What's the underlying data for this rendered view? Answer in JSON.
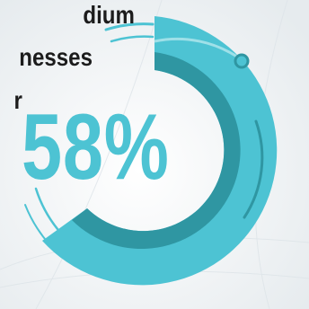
{
  "headline_lines": [
    "dium",
    "nesses",
    "r"
  ],
  "stat": {
    "label": "58%",
    "value": 58,
    "unit": "%"
  },
  "colors": {
    "background": "#f1f4f6",
    "accent": "#4dc3d3",
    "accent_dark": "#2f96a2",
    "text_dark": "#1c1c1c"
  }
}
